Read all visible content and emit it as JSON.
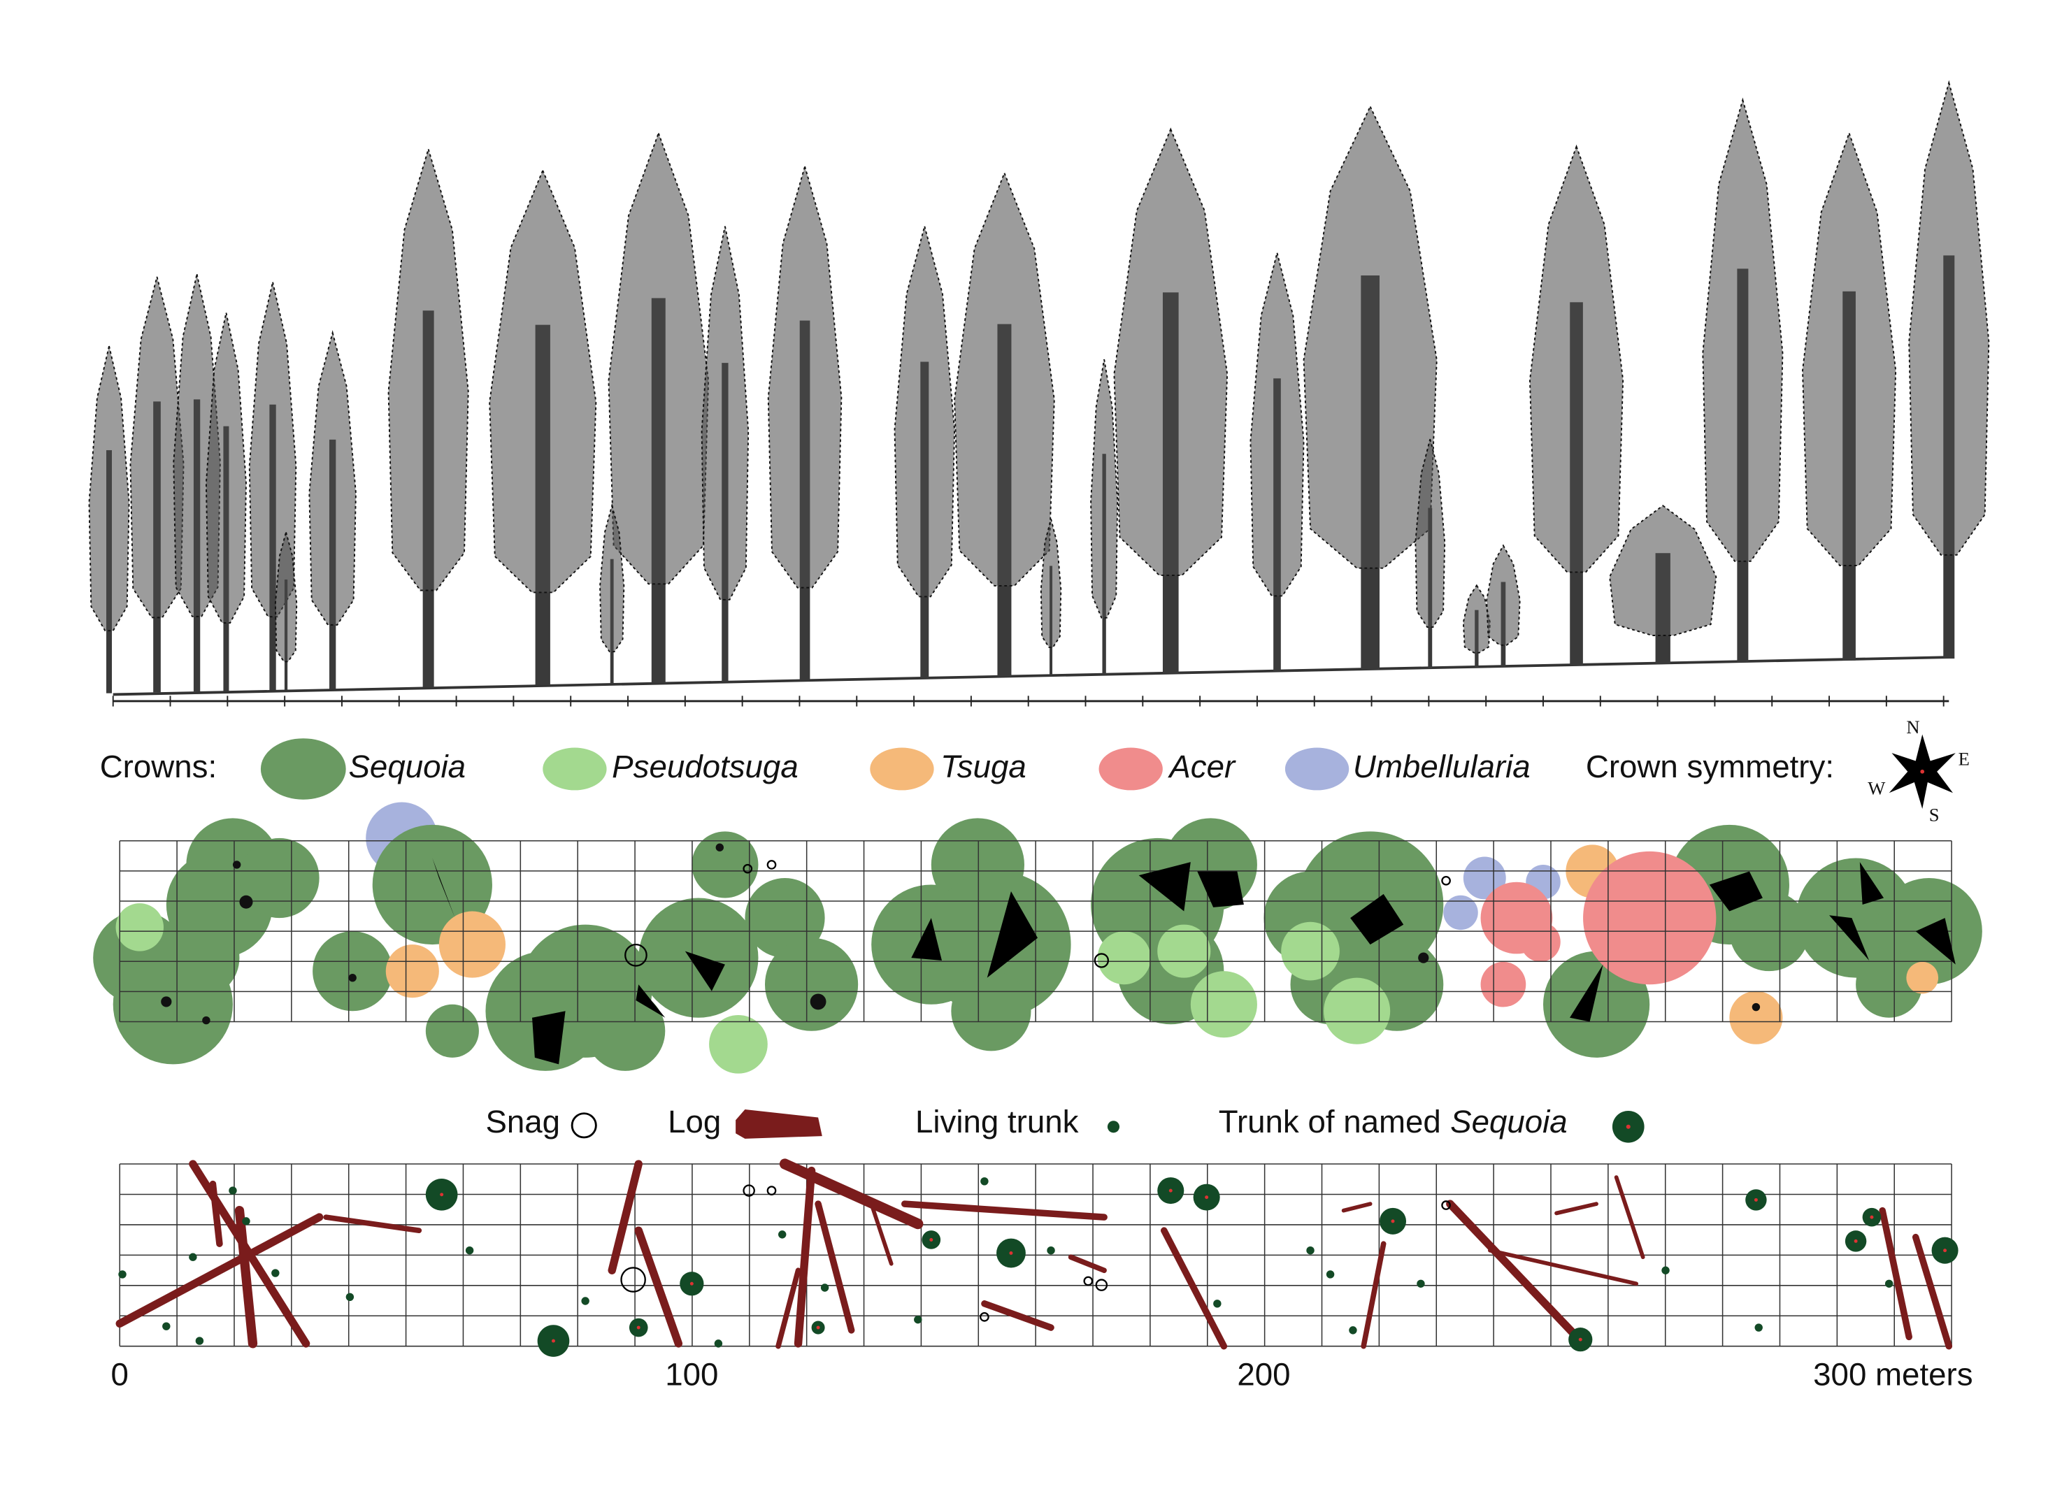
{
  "legend_crowns": {
    "title": "Crowns:",
    "species": [
      "Sequoia",
      "Pseudotsuga",
      "Tsuga",
      "Acer",
      "Umbellularia"
    ],
    "symmetry_label": "Crown symmetry:",
    "compass": [
      "N",
      "E",
      "S",
      "W"
    ]
  },
  "legend_trunks": {
    "snag": "Snag",
    "log": "Log",
    "living_trunk": "Living trunk",
    "named_trunk": [
      "Trunk of named",
      "Sequoia"
    ]
  },
  "scale": {
    "labels": [
      "0",
      "100",
      "200",
      "300 meters"
    ]
  }
}
